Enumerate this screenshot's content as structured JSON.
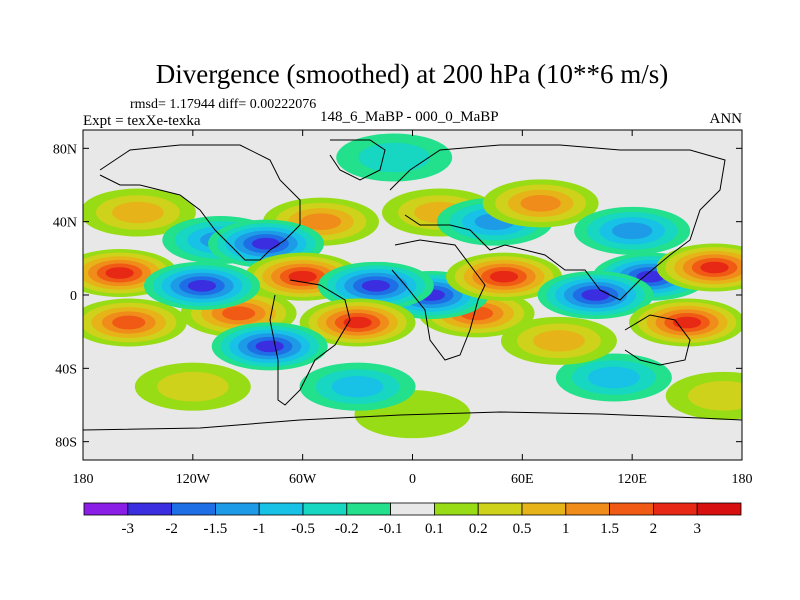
{
  "chart_data": {
    "type": "heatmap",
    "title": "Divergence (smoothed) at 200 hPa (10**6 m/s)",
    "stats": "rmsd= 1.17944 diff= 0.00222076",
    "expt": "Expt = texXe-texka",
    "case": "148_6_MaBP - 000_0_MaBP",
    "period": "ANN",
    "xlim": [
      -180,
      180
    ],
    "ylim": [
      -90,
      90
    ],
    "x_ticks": [
      {
        "value": -180,
        "label": "180"
      },
      {
        "value": -120,
        "label": "120W"
      },
      {
        "value": -60,
        "label": "60W"
      },
      {
        "value": 0,
        "label": "0"
      },
      {
        "value": 60,
        "label": "60E"
      },
      {
        "value": 120,
        "label": "120E"
      },
      {
        "value": 180,
        "label": "180"
      }
    ],
    "y_ticks": [
      {
        "value": 80,
        "label": "80N"
      },
      {
        "value": 40,
        "label": "40N"
      },
      {
        "value": 0,
        "label": "0"
      },
      {
        "value": -40,
        "label": "40S"
      },
      {
        "value": -80,
        "label": "80S"
      }
    ],
    "contour_levels": [
      "-3",
      "-2",
      "-1.5",
      "-1",
      "-0.5",
      "-0.2",
      "-0.1",
      "0.1",
      "0.2",
      "0.5",
      "1",
      "1.5",
      "2",
      "3"
    ],
    "colors": [
      "#8a1ee6",
      "#3a2ee0",
      "#1e6ee6",
      "#1e9be6",
      "#17c2e6",
      "#17d6c2",
      "#22e08c",
      "#e8e8e8",
      "#98dc16",
      "#cfd21a",
      "#e6b419",
      "#f08c1a",
      "#f05a14",
      "#e62814",
      "#d70f0f"
    ],
    "features": [
      {
        "lon": -160,
        "lat": 12,
        "value": 2.2
      },
      {
        "lon": -150,
        "lat": 45,
        "value": 0.9
      },
      {
        "lon": -155,
        "lat": -15,
        "value": 1.6
      },
      {
        "lon": -115,
        "lat": 5,
        "value": -2.6
      },
      {
        "lon": -105,
        "lat": 30,
        "value": -1.2
      },
      {
        "lon": -80,
        "lat": 28,
        "value": -2.4
      },
      {
        "lon": -78,
        "lat": -28,
        "value": -2.8
      },
      {
        "lon": -95,
        "lat": -10,
        "value": 1.6
      },
      {
        "lon": -60,
        "lat": 10,
        "value": 2.4
      },
      {
        "lon": -50,
        "lat": 40,
        "value": 1.4
      },
      {
        "lon": -30,
        "lat": -15,
        "value": 2.6
      },
      {
        "lon": -30,
        "lat": -50,
        "value": -0.5
      },
      {
        "lon": -20,
        "lat": 5,
        "value": -2.5
      },
      {
        "lon": 10,
        "lat": 0,
        "value": -2.2
      },
      {
        "lon": 15,
        "lat": 45,
        "value": 0.9
      },
      {
        "lon": 35,
        "lat": -10,
        "value": 1.8
      },
      {
        "lon": 50,
        "lat": 10,
        "value": 2.2
      },
      {
        "lon": 45,
        "lat": 40,
        "value": -1.0
      },
      {
        "lon": 70,
        "lat": 50,
        "value": 1.3
      },
      {
        "lon": 100,
        "lat": 0,
        "value": -2.6
      },
      {
        "lon": 130,
        "lat": 10,
        "value": -2.0
      },
      {
        "lon": 120,
        "lat": 35,
        "value": -1.4
      },
      {
        "lon": 150,
        "lat": -15,
        "value": 2.6
      },
      {
        "lon": 165,
        "lat": 15,
        "value": 2.4
      },
      {
        "lon": 80,
        "lat": -25,
        "value": 1.0
      },
      {
        "lon": 110,
        "lat": -45,
        "value": -0.6
      },
      {
        "lon": -120,
        "lat": -50,
        "value": 0.5
      },
      {
        "lon": 0,
        "lat": -65,
        "value": 0.2
      },
      {
        "lon": -10,
        "lat": 75,
        "value": -0.3
      },
      {
        "lon": 170,
        "lat": -55,
        "value": 0.4
      }
    ]
  }
}
